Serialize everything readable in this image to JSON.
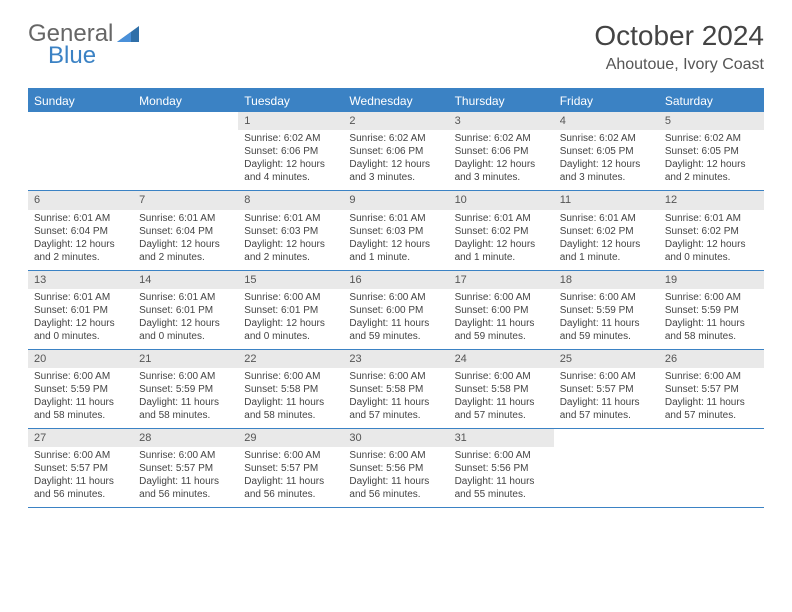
{
  "logo": {
    "part1": "General",
    "part2": "Blue"
  },
  "title": "October 2024",
  "location": "Ahoutoue, Ivory Coast",
  "colors": {
    "header_bg": "#3b82c4",
    "daynum_bg": "#e9e9e9",
    "text": "#444444",
    "border": "#3b82c4"
  },
  "dow": [
    "Sunday",
    "Monday",
    "Tuesday",
    "Wednesday",
    "Thursday",
    "Friday",
    "Saturday"
  ],
  "weeks": [
    [
      {
        "n": "",
        "sr": "",
        "ss": "",
        "dl": ""
      },
      {
        "n": "",
        "sr": "",
        "ss": "",
        "dl": ""
      },
      {
        "n": "1",
        "sr": "Sunrise: 6:02 AM",
        "ss": "Sunset: 6:06 PM",
        "dl": "Daylight: 12 hours and 4 minutes."
      },
      {
        "n": "2",
        "sr": "Sunrise: 6:02 AM",
        "ss": "Sunset: 6:06 PM",
        "dl": "Daylight: 12 hours and 3 minutes."
      },
      {
        "n": "3",
        "sr": "Sunrise: 6:02 AM",
        "ss": "Sunset: 6:06 PM",
        "dl": "Daylight: 12 hours and 3 minutes."
      },
      {
        "n": "4",
        "sr": "Sunrise: 6:02 AM",
        "ss": "Sunset: 6:05 PM",
        "dl": "Daylight: 12 hours and 3 minutes."
      },
      {
        "n": "5",
        "sr": "Sunrise: 6:02 AM",
        "ss": "Sunset: 6:05 PM",
        "dl": "Daylight: 12 hours and 2 minutes."
      }
    ],
    [
      {
        "n": "6",
        "sr": "Sunrise: 6:01 AM",
        "ss": "Sunset: 6:04 PM",
        "dl": "Daylight: 12 hours and 2 minutes."
      },
      {
        "n": "7",
        "sr": "Sunrise: 6:01 AM",
        "ss": "Sunset: 6:04 PM",
        "dl": "Daylight: 12 hours and 2 minutes."
      },
      {
        "n": "8",
        "sr": "Sunrise: 6:01 AM",
        "ss": "Sunset: 6:03 PM",
        "dl": "Daylight: 12 hours and 2 minutes."
      },
      {
        "n": "9",
        "sr": "Sunrise: 6:01 AM",
        "ss": "Sunset: 6:03 PM",
        "dl": "Daylight: 12 hours and 1 minute."
      },
      {
        "n": "10",
        "sr": "Sunrise: 6:01 AM",
        "ss": "Sunset: 6:02 PM",
        "dl": "Daylight: 12 hours and 1 minute."
      },
      {
        "n": "11",
        "sr": "Sunrise: 6:01 AM",
        "ss": "Sunset: 6:02 PM",
        "dl": "Daylight: 12 hours and 1 minute."
      },
      {
        "n": "12",
        "sr": "Sunrise: 6:01 AM",
        "ss": "Sunset: 6:02 PM",
        "dl": "Daylight: 12 hours and 0 minutes."
      }
    ],
    [
      {
        "n": "13",
        "sr": "Sunrise: 6:01 AM",
        "ss": "Sunset: 6:01 PM",
        "dl": "Daylight: 12 hours and 0 minutes."
      },
      {
        "n": "14",
        "sr": "Sunrise: 6:01 AM",
        "ss": "Sunset: 6:01 PM",
        "dl": "Daylight: 12 hours and 0 minutes."
      },
      {
        "n": "15",
        "sr": "Sunrise: 6:00 AM",
        "ss": "Sunset: 6:01 PM",
        "dl": "Daylight: 12 hours and 0 minutes."
      },
      {
        "n": "16",
        "sr": "Sunrise: 6:00 AM",
        "ss": "Sunset: 6:00 PM",
        "dl": "Daylight: 11 hours and 59 minutes."
      },
      {
        "n": "17",
        "sr": "Sunrise: 6:00 AM",
        "ss": "Sunset: 6:00 PM",
        "dl": "Daylight: 11 hours and 59 minutes."
      },
      {
        "n": "18",
        "sr": "Sunrise: 6:00 AM",
        "ss": "Sunset: 5:59 PM",
        "dl": "Daylight: 11 hours and 59 minutes."
      },
      {
        "n": "19",
        "sr": "Sunrise: 6:00 AM",
        "ss": "Sunset: 5:59 PM",
        "dl": "Daylight: 11 hours and 58 minutes."
      }
    ],
    [
      {
        "n": "20",
        "sr": "Sunrise: 6:00 AM",
        "ss": "Sunset: 5:59 PM",
        "dl": "Daylight: 11 hours and 58 minutes."
      },
      {
        "n": "21",
        "sr": "Sunrise: 6:00 AM",
        "ss": "Sunset: 5:59 PM",
        "dl": "Daylight: 11 hours and 58 minutes."
      },
      {
        "n": "22",
        "sr": "Sunrise: 6:00 AM",
        "ss": "Sunset: 5:58 PM",
        "dl": "Daylight: 11 hours and 58 minutes."
      },
      {
        "n": "23",
        "sr": "Sunrise: 6:00 AM",
        "ss": "Sunset: 5:58 PM",
        "dl": "Daylight: 11 hours and 57 minutes."
      },
      {
        "n": "24",
        "sr": "Sunrise: 6:00 AM",
        "ss": "Sunset: 5:58 PM",
        "dl": "Daylight: 11 hours and 57 minutes."
      },
      {
        "n": "25",
        "sr": "Sunrise: 6:00 AM",
        "ss": "Sunset: 5:57 PM",
        "dl": "Daylight: 11 hours and 57 minutes."
      },
      {
        "n": "26",
        "sr": "Sunrise: 6:00 AM",
        "ss": "Sunset: 5:57 PM",
        "dl": "Daylight: 11 hours and 57 minutes."
      }
    ],
    [
      {
        "n": "27",
        "sr": "Sunrise: 6:00 AM",
        "ss": "Sunset: 5:57 PM",
        "dl": "Daylight: 11 hours and 56 minutes."
      },
      {
        "n": "28",
        "sr": "Sunrise: 6:00 AM",
        "ss": "Sunset: 5:57 PM",
        "dl": "Daylight: 11 hours and 56 minutes."
      },
      {
        "n": "29",
        "sr": "Sunrise: 6:00 AM",
        "ss": "Sunset: 5:57 PM",
        "dl": "Daylight: 11 hours and 56 minutes."
      },
      {
        "n": "30",
        "sr": "Sunrise: 6:00 AM",
        "ss": "Sunset: 5:56 PM",
        "dl": "Daylight: 11 hours and 56 minutes."
      },
      {
        "n": "31",
        "sr": "Sunrise: 6:00 AM",
        "ss": "Sunset: 5:56 PM",
        "dl": "Daylight: 11 hours and 55 minutes."
      },
      {
        "n": "",
        "sr": "",
        "ss": "",
        "dl": ""
      },
      {
        "n": "",
        "sr": "",
        "ss": "",
        "dl": ""
      }
    ]
  ]
}
